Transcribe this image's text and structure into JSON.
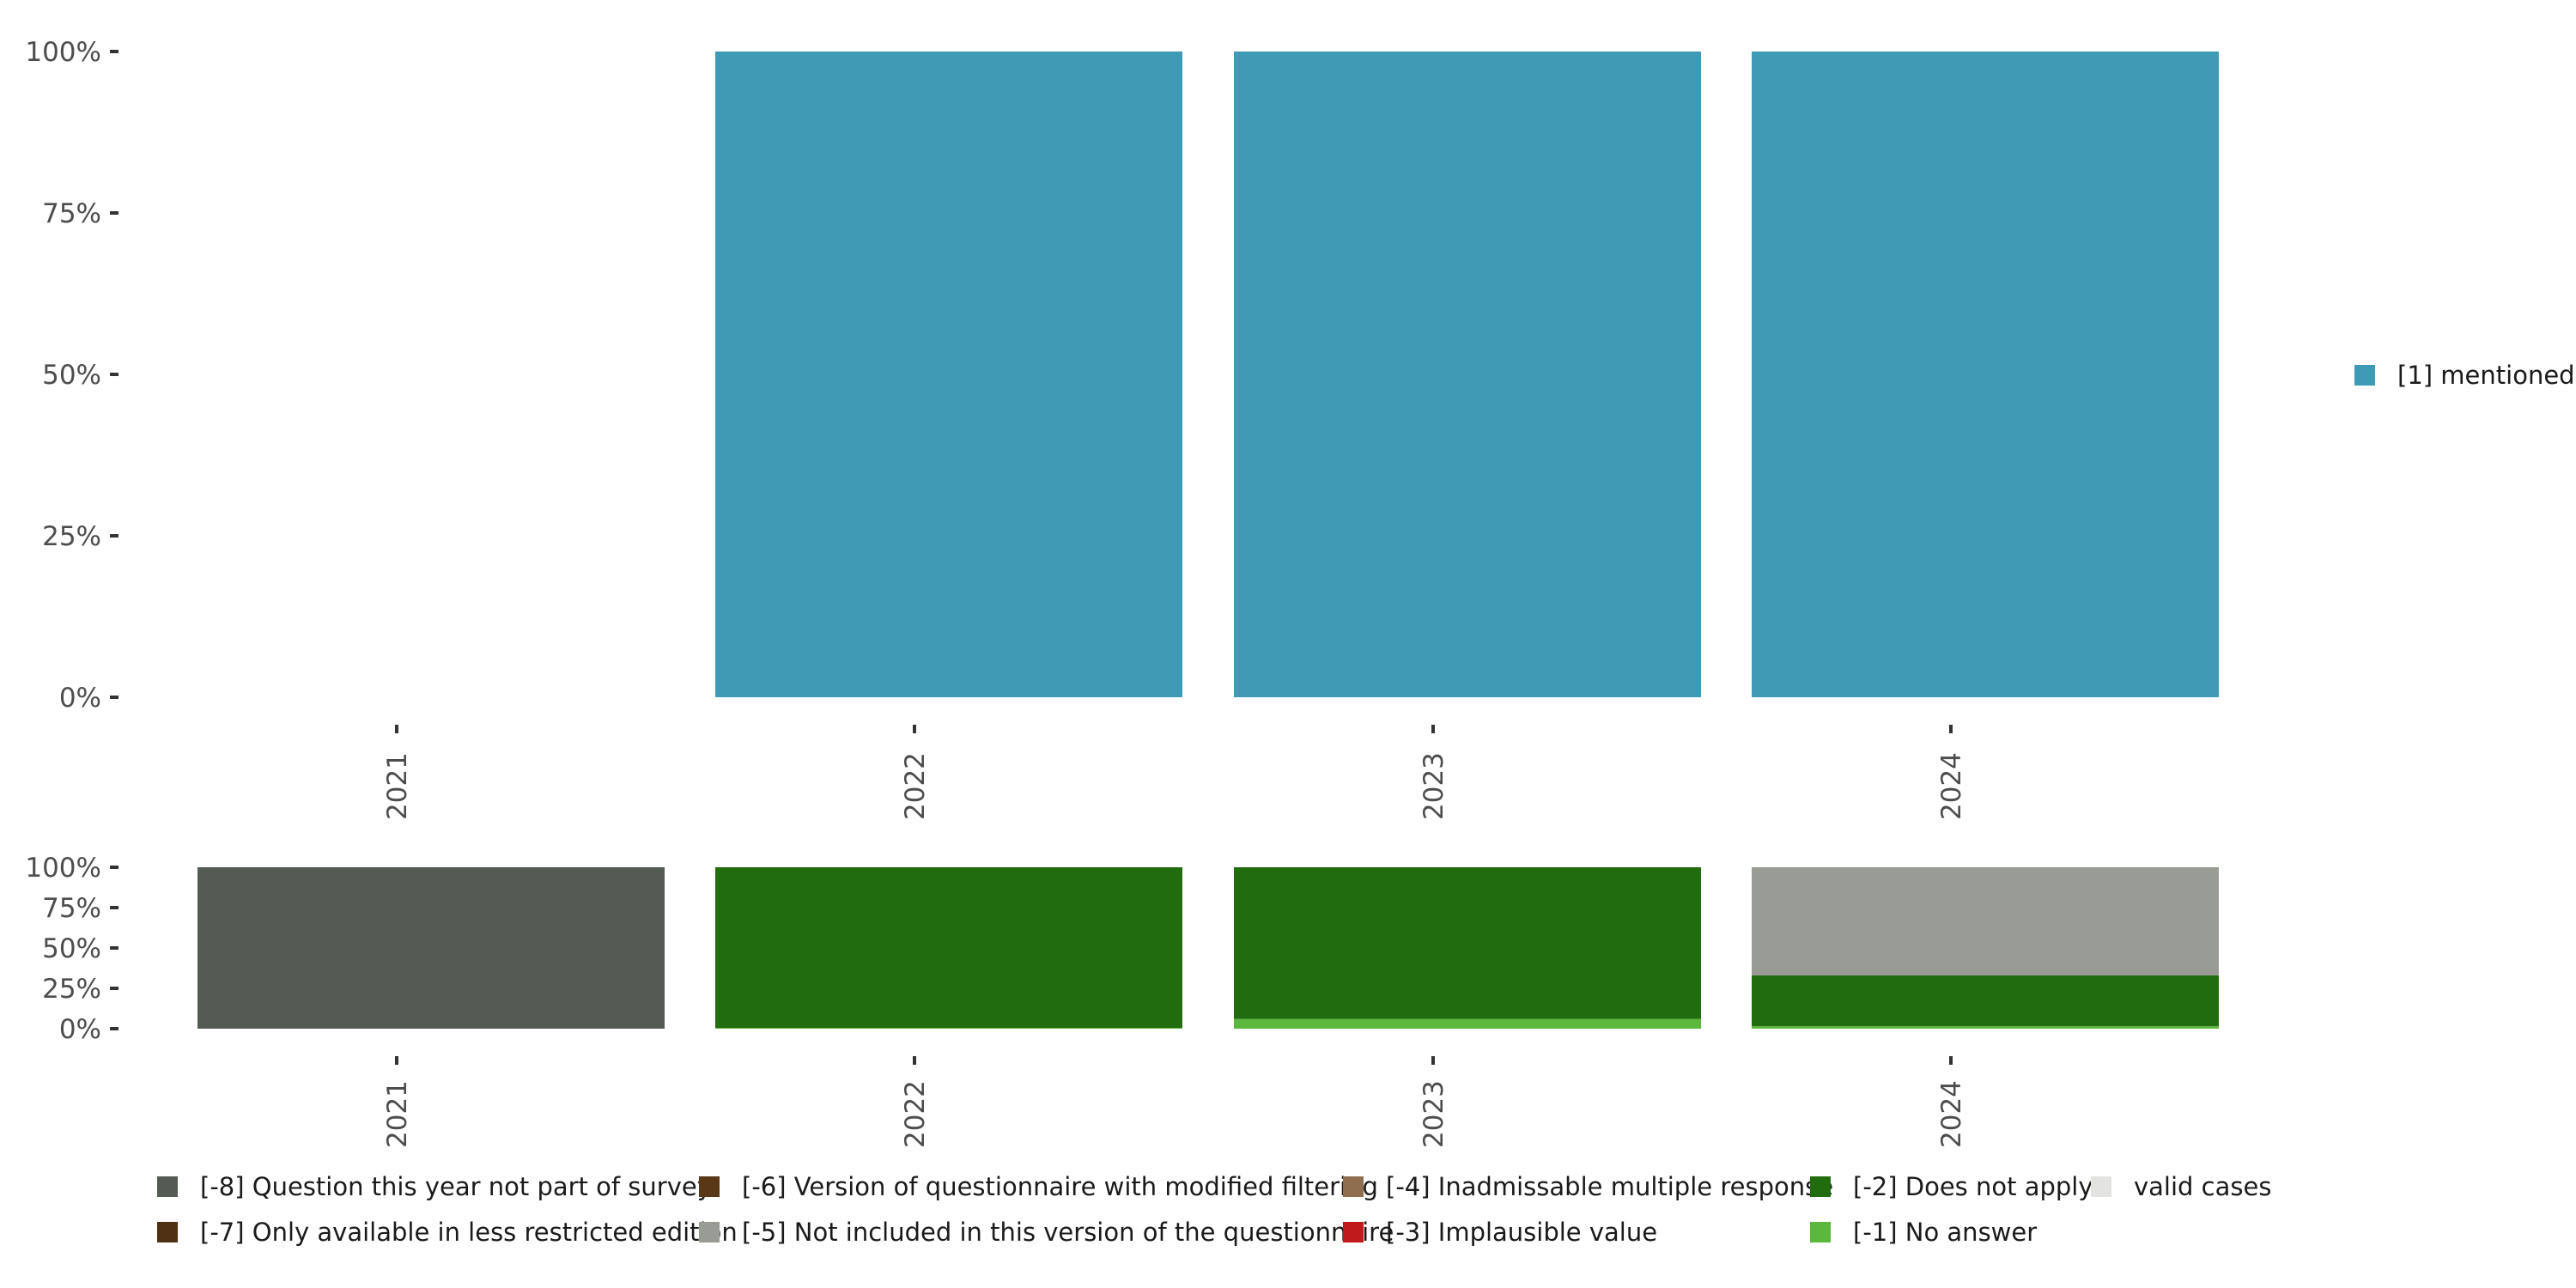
{
  "chart_data": [
    {
      "type": "bar",
      "stacked": true,
      "categories": [
        "2021",
        "2022",
        "2023",
        "2024"
      ],
      "series": [
        {
          "name": "[1] mentioned",
          "color": "#3e9ab5",
          "values": [
            0,
            100,
            100,
            100
          ]
        }
      ],
      "y_ticks": [
        "0%",
        "25%",
        "50%",
        "75%",
        "100%"
      ],
      "ylim": [
        0,
        100
      ],
      "grid": false,
      "legend_position": "right"
    },
    {
      "type": "bar",
      "stacked": true,
      "categories": [
        "2021",
        "2022",
        "2023",
        "2024"
      ],
      "series": [
        {
          "name": "[-1] No answer",
          "color": "#5cb83c",
          "values": [
            0,
            0.5,
            6,
            1.5
          ]
        },
        {
          "name": "[-2] Does not apply",
          "color": "#226c10",
          "values": [
            0,
            99.5,
            94,
            31.5
          ]
        },
        {
          "name": "[-5] Not included in this version of the questionnaire",
          "color": "#999c94",
          "values": [
            0,
            0,
            0,
            67
          ]
        },
        {
          "name": "[-8] Question this year not part of survey",
          "color": "#545b53",
          "values": [
            100,
            0,
            0,
            0
          ]
        }
      ],
      "y_ticks": [
        "0%",
        "25%",
        "50%",
        "75%",
        "100%"
      ],
      "ylim": [
        0,
        100
      ],
      "grid": false,
      "legend_position": "bottom",
      "legend": [
        {
          "name": "[-8] Question this year not part of survey",
          "color": "#545b53"
        },
        {
          "name": "[-7] Only available in less restricted edition",
          "color": "#4f3113"
        },
        {
          "name": "[-6] Version of questionnaire with modified filtering",
          "color": "#5a3716"
        },
        {
          "name": "[-5] Not included in this version of the questionnaire",
          "color": "#999c94"
        },
        {
          "name": "[-4] Inadmissable multiple response",
          "color": "#8e6e4f"
        },
        {
          "name": "[-3] Implausible value",
          "color": "#c11a1a"
        },
        {
          "name": "[-2] Does not apply",
          "color": "#226c10"
        },
        {
          "name": "[-1] No answer",
          "color": "#5cb83c"
        },
        {
          "name": "valid cases",
          "color": "#e3e4e1"
        }
      ]
    }
  ]
}
